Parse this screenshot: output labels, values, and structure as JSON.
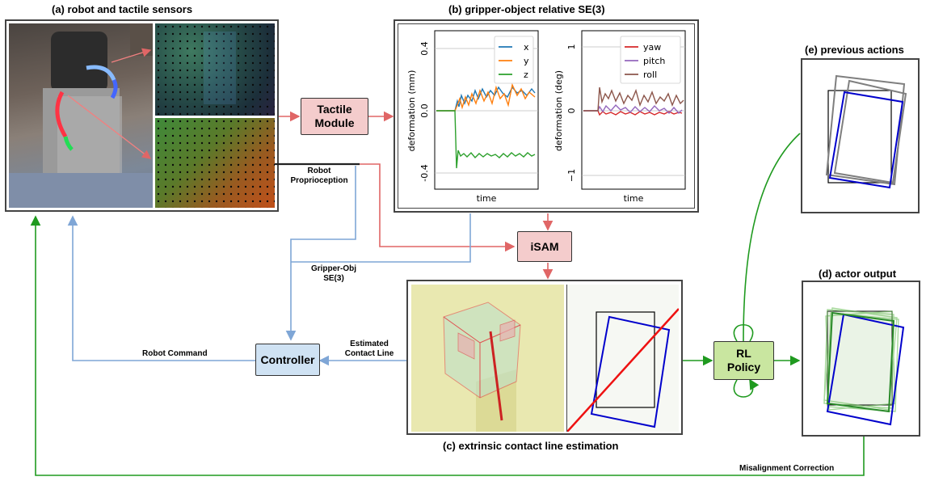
{
  "titles": {
    "a": "(a) robot and tactile sensors",
    "b": "(b) gripper-object relative SE(3)",
    "c": "(c) extrinsic contact line estimation",
    "d": "(d) actor output",
    "e": "(e) previous actions"
  },
  "nodes": {
    "tactile_line1": "Tactile",
    "tactile_line2": "Module",
    "isam": "iSAM",
    "controller": "Controller",
    "rl_line1": "RL",
    "rl_line2": "Policy"
  },
  "edge_labels": {
    "proprio_line1": "Robot",
    "proprio_line2": "Proprioception",
    "gripper_line1": "Gripper-Obj",
    "gripper_line2": "SE(3)",
    "contact_line1": "Estimated",
    "contact_line2": "Contact Line",
    "robot_command": "Robot Command",
    "misalignment": "Misalignment Correction"
  },
  "colors": {
    "red_edge": "#e06666",
    "blue_edge": "#7fa6d6",
    "green_edge": "#1f9a1f",
    "pink_node": "#f4cccc",
    "blue_node": "#cfe2f3",
    "green_node": "#c9e6a0"
  },
  "plots": {
    "left": {
      "ylabel": "deformation (mm)",
      "xlabel": "time",
      "yticks": [
        "0.4",
        "0.0",
        "-0.4"
      ],
      "legend": [
        "x",
        "y",
        "z"
      ],
      "legend_colors": [
        "#1f77b4",
        "#ff7f0e",
        "#2ca02c"
      ]
    },
    "right": {
      "ylabel": "deformation (deg)",
      "xlabel": "time",
      "yticks": [
        "1",
        "0",
        "−1"
      ],
      "legend": [
        "yaw",
        "pitch",
        "roll"
      ],
      "legend_colors": [
        "#d62728",
        "#9467bd",
        "#8c564b"
      ]
    }
  }
}
